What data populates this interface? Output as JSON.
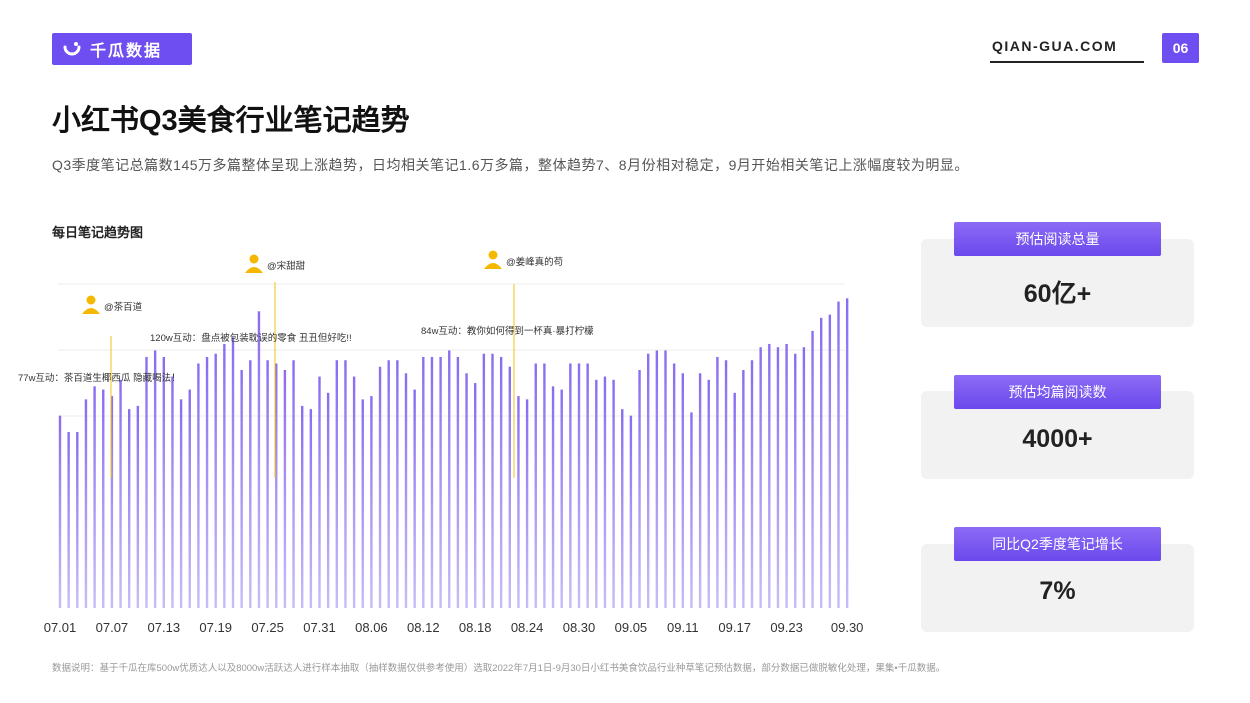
{
  "header": {
    "brand_name": "千瓜数据",
    "site_url": "QIAN-GUA.COM",
    "page_number": "06"
  },
  "title": "小红书Q3美食行业笔记趋势",
  "subtitle": "Q3季度笔记总篇数145万多篇整体呈现上涨趋势，日均相关笔记1.6万多篇，整体趋势7、8月份相对稳定，9月开始相关笔记上涨幅度较为明显。",
  "chart_title": "每日笔记趋势图",
  "annotations": [
    {
      "user": "@茶百道",
      "text": "77w互动：茶百道生椰西瓜   隐藏喝法！",
      "date": "07.08"
    },
    {
      "user": "@宋甜甜",
      "text": "120w互动：盘点被包装耽误的零食   丑丑但好吃!!",
      "date": "07.26"
    },
    {
      "user": "@姜峰真的苟",
      "text": "84w互动：教你如何得到一杯真·暴打柠檬",
      "date": "08.24"
    }
  ],
  "kpis": [
    {
      "label": "预估阅读总量",
      "value": "60亿+"
    },
    {
      "label": "预估均篇阅读数",
      "value": "4000+"
    },
    {
      "label": "同比Q2季度笔记增长",
      "value": "7%"
    }
  ],
  "footnote": "数据说明：基于千瓜在库500w优质达人以及8000w活跃达人进行样本抽取（抽样数据仅供参考使用）选取2022年7月1日-9月30日小红书美食饮品行业种草笔记预估数据，部分数据已做脱敏化处理，果集•千瓜数据。",
  "colors": {
    "accent": "#6e4ef0",
    "bar_top": "#8a6cf0",
    "bar_bottom": "#c8bcf8",
    "annotation_line": "#f2c21b",
    "user_icon": "#f5b800"
  },
  "chart_data": {
    "type": "bar",
    "x_tick_labels": [
      "07.01",
      "07.07",
      "07.13",
      "07.19",
      "07.25",
      "07.31",
      "08.06",
      "08.12",
      "08.18",
      "08.24",
      "08.30",
      "09.05",
      "09.11",
      "09.17",
      "09.23",
      "09.30"
    ],
    "values": [
      59,
      54,
      54,
      64,
      68,
      67,
      65,
      70,
      61,
      62,
      77,
      79,
      77,
      71,
      64,
      67,
      75,
      77,
      78,
      81,
      83,
      73,
      76,
      91,
      76,
      75,
      73,
      76,
      62,
      61,
      71,
      66,
      76,
      76,
      71,
      64,
      65,
      74,
      76,
      76,
      72,
      67,
      77,
      77,
      77,
      79,
      77,
      72,
      69,
      78,
      78,
      77,
      74,
      65,
      64,
      75,
      75,
      68,
      67,
      75,
      75,
      75,
      70,
      71,
      70,
      61,
      59,
      73,
      78,
      79,
      79,
      75,
      72,
      60,
      72,
      70,
      77,
      76,
      66,
      73,
      76,
      80,
      81,
      80,
      81,
      78,
      80,
      85,
      89,
      90,
      94,
      95
    ]
  }
}
